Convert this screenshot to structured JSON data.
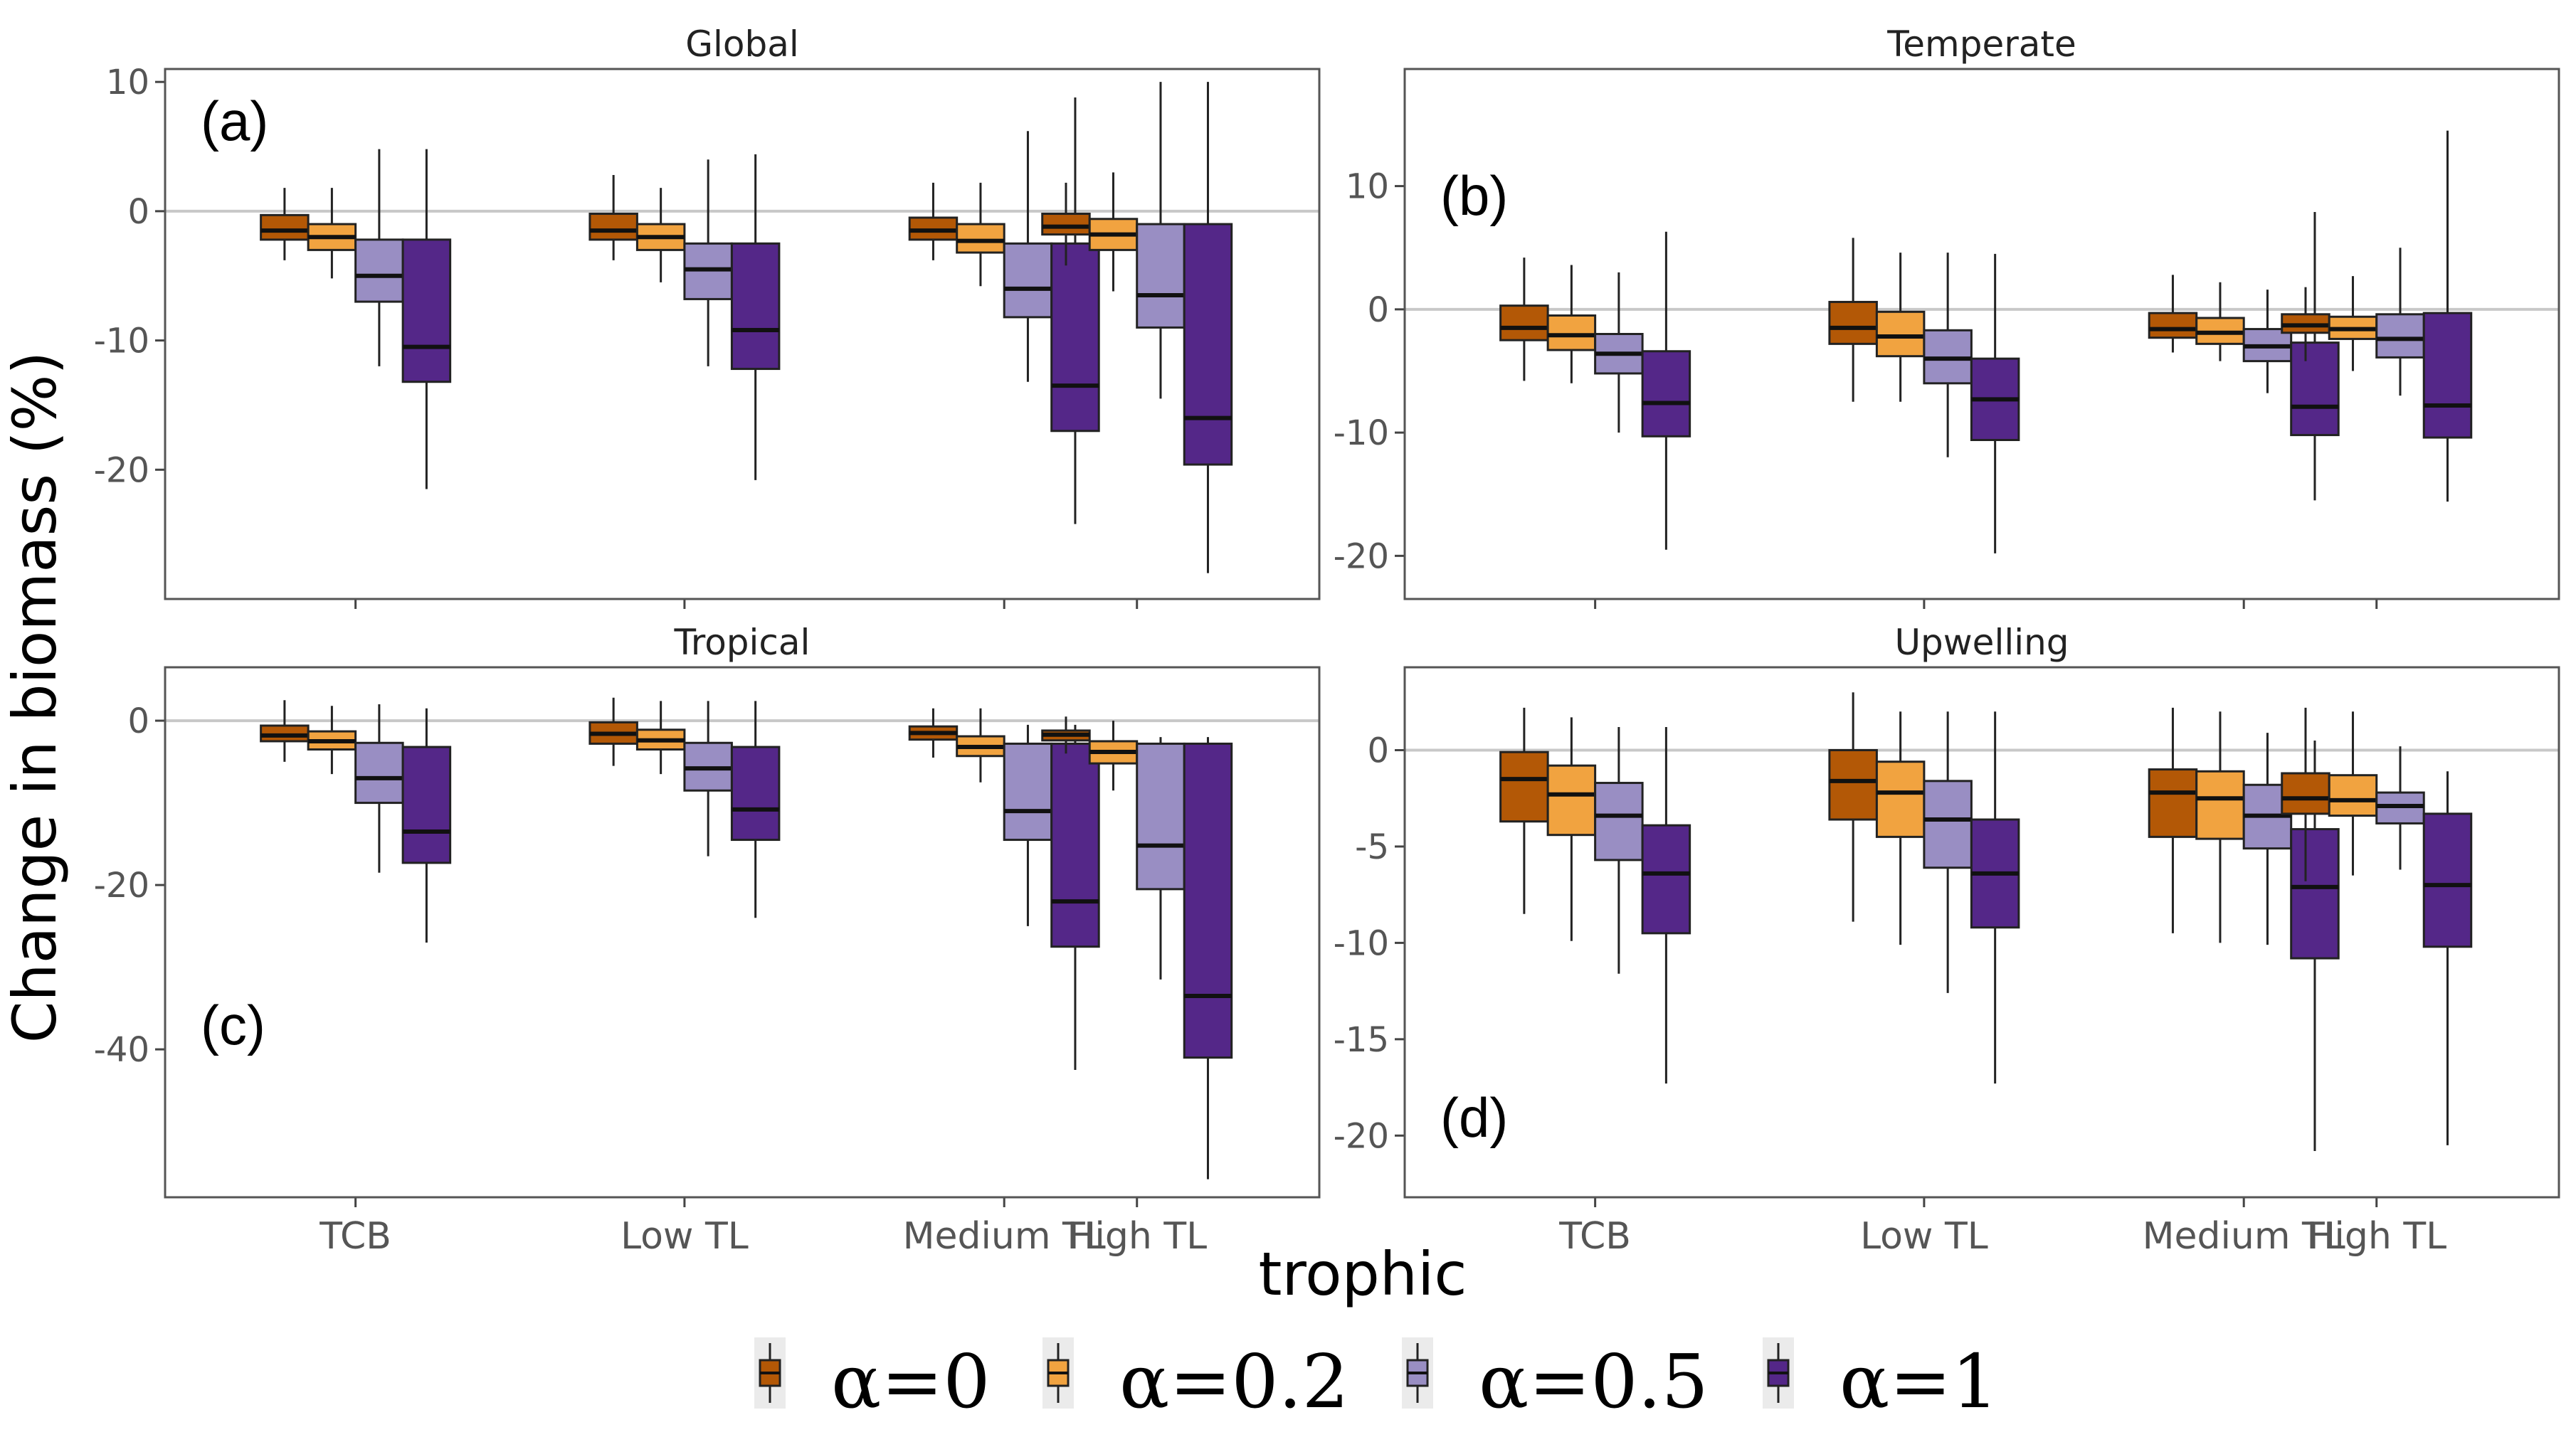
{
  "figure": {
    "ylabel": "Change in biomass (%)",
    "xlabel": "trophic",
    "legend": [
      {
        "label": "α=0",
        "color": "#B35806"
      },
      {
        "label": "α=0.2",
        "color": "#F1A340"
      },
      {
        "label": "α=0.5",
        "color": "#998EC3"
      },
      {
        "label": "α=1",
        "color": "#542788"
      }
    ]
  },
  "chart_data": [
    {
      "type": "box",
      "title": "Global",
      "panel_label": "(a)",
      "categories": [
        "TCB",
        "Low TL",
        "Medium TL",
        "High TL"
      ],
      "ylim": [
        -30,
        11
      ],
      "yticks": [
        10,
        0,
        -10,
        -20
      ],
      "reference_line": 0,
      "series": [
        {
          "name": "α=0",
          "boxes": [
            {
              "lo": -3.8,
              "q1": -2.2,
              "med": -1.5,
              "q3": -0.3,
              "hi": 1.8
            },
            {
              "lo": -3.8,
              "q1": -2.2,
              "med": -1.5,
              "q3": -0.2,
              "hi": 2.8
            },
            {
              "lo": -3.8,
              "q1": -2.2,
              "med": -1.5,
              "q3": -0.5,
              "hi": 2.2
            },
            {
              "lo": -4.2,
              "q1": -1.8,
              "med": -1.2,
              "q3": -0.2,
              "hi": 2.2
            }
          ]
        },
        {
          "name": "α=0.2",
          "boxes": [
            {
              "lo": -5.2,
              "q1": -3.0,
              "med": -2.0,
              "q3": -1.0,
              "hi": 1.8
            },
            {
              "lo": -5.5,
              "q1": -3.0,
              "med": -2.0,
              "q3": -1.0,
              "hi": 1.8
            },
            {
              "lo": -5.8,
              "q1": -3.2,
              "med": -2.3,
              "q3": -1.0,
              "hi": 2.2
            },
            {
              "lo": -6.2,
              "q1": -3.0,
              "med": -1.8,
              "q3": -0.6,
              "hi": 3.0
            }
          ]
        },
        {
          "name": "α=0.5",
          "boxes": [
            {
              "lo": -12.0,
              "q1": -7.0,
              "med": -5.0,
              "q3": -2.2,
              "hi": 4.8
            },
            {
              "lo": -12.0,
              "q1": -6.8,
              "med": -4.5,
              "q3": -2.5,
              "hi": 4.0
            },
            {
              "lo": -13.2,
              "q1": -8.2,
              "med": -6.0,
              "q3": -2.5,
              "hi": 6.2
            },
            {
              "lo": -14.5,
              "q1": -9.0,
              "med": -6.5,
              "q3": -1.0,
              "hi": 10.0
            }
          ]
        },
        {
          "name": "α=1",
          "boxes": [
            {
              "lo": -21.5,
              "q1": -13.2,
              "med": -10.5,
              "q3": -2.2,
              "hi": 4.8
            },
            {
              "lo": -20.8,
              "q1": -12.2,
              "med": -9.2,
              "q3": -2.5,
              "hi": 4.4
            },
            {
              "lo": -24.2,
              "q1": -17.0,
              "med": -13.5,
              "q3": -2.5,
              "hi": 8.8
            },
            {
              "lo": -28.0,
              "q1": -19.6,
              "med": -16.0,
              "q3": -1.0,
              "hi": 10.0
            }
          ]
        }
      ]
    },
    {
      "type": "box",
      "title": "Temperate",
      "panel_label": "(b)",
      "categories": [
        "TCB",
        "Low TL",
        "Medium TL",
        "High TL"
      ],
      "ylim": [
        -23.5,
        19.5
      ],
      "yticks": [
        10,
        0,
        -10,
        -20
      ],
      "reference_line": 0,
      "series": [
        {
          "name": "α=0",
          "boxes": [
            {
              "lo": -5.8,
              "q1": -2.5,
              "med": -1.5,
              "q3": 0.3,
              "hi": 4.2
            },
            {
              "lo": -7.5,
              "q1": -2.8,
              "med": -1.5,
              "q3": 0.6,
              "hi": 5.8
            },
            {
              "lo": -3.5,
              "q1": -2.3,
              "med": -1.6,
              "q3": -0.3,
              "hi": 2.8
            },
            {
              "lo": -4.2,
              "q1": -1.9,
              "med": -1.3,
              "q3": -0.4,
              "hi": 1.8
            }
          ]
        },
        {
          "name": "α=0.2",
          "boxes": [
            {
              "lo": -6.0,
              "q1": -3.3,
              "med": -2.1,
              "q3": -0.5,
              "hi": 3.6
            },
            {
              "lo": -7.5,
              "q1": -3.8,
              "med": -2.2,
              "q3": -0.2,
              "hi": 4.6
            },
            {
              "lo": -4.2,
              "q1": -2.8,
              "med": -1.9,
              "q3": -0.7,
              "hi": 2.2
            },
            {
              "lo": -5.0,
              "q1": -2.4,
              "med": -1.6,
              "q3": -0.6,
              "hi": 2.7
            }
          ]
        },
        {
          "name": "α=0.5",
          "boxes": [
            {
              "lo": -10.0,
              "q1": -5.2,
              "med": -3.6,
              "q3": -2.0,
              "hi": 3.0
            },
            {
              "lo": -12.0,
              "q1": -6.0,
              "med": -4.0,
              "q3": -1.7,
              "hi": 4.6
            },
            {
              "lo": -6.8,
              "q1": -4.2,
              "med": -3.0,
              "q3": -1.6,
              "hi": 1.6
            },
            {
              "lo": -7.0,
              "q1": -3.9,
              "med": -2.4,
              "q3": -0.4,
              "hi": 5.0
            }
          ]
        },
        {
          "name": "α=1",
          "boxes": [
            {
              "lo": -19.5,
              "q1": -10.3,
              "med": -7.6,
              "q3": -3.4,
              "hi": 6.3
            },
            {
              "lo": -19.8,
              "q1": -10.6,
              "med": -7.3,
              "q3": -4.0,
              "hi": 4.5
            },
            {
              "lo": -15.5,
              "q1": -10.2,
              "med": -7.9,
              "q3": -2.7,
              "hi": 7.9
            },
            {
              "lo": -15.6,
              "q1": -10.4,
              "med": -7.8,
              "q3": -0.3,
              "hi": 14.5
            }
          ]
        }
      ]
    },
    {
      "type": "box",
      "title": "Tropical",
      "panel_label": "(c)",
      "categories": [
        "TCB",
        "Low TL",
        "Medium TL",
        "High TL"
      ],
      "ylim": [
        -58,
        6.5
      ],
      "yticks": [
        0,
        -20,
        -40
      ],
      "reference_line": 0,
      "series": [
        {
          "name": "α=0",
          "boxes": [
            {
              "lo": -5.0,
              "q1": -2.5,
              "med": -1.8,
              "q3": -0.6,
              "hi": 2.5
            },
            {
              "lo": -5.5,
              "q1": -2.8,
              "med": -1.6,
              "q3": -0.2,
              "hi": 2.8
            },
            {
              "lo": -4.5,
              "q1": -2.3,
              "med": -1.5,
              "q3": -0.7,
              "hi": 1.5
            },
            {
              "lo": -4.0,
              "q1": -2.4,
              "med": -1.7,
              "q3": -1.2,
              "hi": 0.5
            }
          ]
        },
        {
          "name": "α=0.2",
          "boxes": [
            {
              "lo": -6.5,
              "q1": -3.5,
              "med": -2.5,
              "q3": -1.3,
              "hi": 1.8
            },
            {
              "lo": -6.5,
              "q1": -3.5,
              "med": -2.4,
              "q3": -1.1,
              "hi": 2.4
            },
            {
              "lo": -7.5,
              "q1": -4.3,
              "med": -3.2,
              "q3": -1.9,
              "hi": 1.5
            },
            {
              "lo": -8.5,
              "q1": -5.2,
              "med": -3.8,
              "q3": -2.5,
              "hi": 0.0
            }
          ]
        },
        {
          "name": "α=0.5",
          "boxes": [
            {
              "lo": -18.5,
              "q1": -10.0,
              "med": -7.0,
              "q3": -2.7,
              "hi": 2.0
            },
            {
              "lo": -16.5,
              "q1": -8.5,
              "med": -5.8,
              "q3": -2.7,
              "hi": 2.4
            },
            {
              "lo": -25.0,
              "q1": -14.5,
              "med": -11.0,
              "q3": -2.8,
              "hi": -0.5
            },
            {
              "lo": -31.5,
              "q1": -20.5,
              "med": -15.2,
              "q3": -2.8,
              "hi": -2.0
            }
          ]
        },
        {
          "name": "α=1",
          "boxes": [
            {
              "lo": -27.0,
              "q1": -17.3,
              "med": -13.5,
              "q3": -3.2,
              "hi": 1.5
            },
            {
              "lo": -24.0,
              "q1": -14.5,
              "med": -10.8,
              "q3": -3.2,
              "hi": 2.4
            },
            {
              "lo": -42.5,
              "q1": -27.5,
              "med": -22.0,
              "q3": -2.8,
              "hi": -0.5
            },
            {
              "lo": -55.8,
              "q1": -41.0,
              "med": -33.5,
              "q3": -2.8,
              "hi": -2.0
            }
          ]
        }
      ]
    },
    {
      "type": "box",
      "title": "Upwelling",
      "panel_label": "(d)",
      "categories": [
        "TCB",
        "Low TL",
        "Medium TL",
        "High TL"
      ],
      "ylim": [
        -23.2,
        4.3
      ],
      "yticks": [
        0,
        -5,
        -10,
        -15,
        -20
      ],
      "reference_line": 0,
      "series": [
        {
          "name": "α=0",
          "boxes": [
            {
              "lo": -8.5,
              "q1": -3.7,
              "med": -1.5,
              "q3": -0.1,
              "hi": 2.2
            },
            {
              "lo": -8.9,
              "q1": -3.6,
              "med": -1.6,
              "q3": 0.0,
              "hi": 3.0
            },
            {
              "lo": -9.5,
              "q1": -4.5,
              "med": -2.2,
              "q3": -1.0,
              "hi": 2.2
            },
            {
              "lo": -6.8,
              "q1": -3.3,
              "med": -2.5,
              "q3": -1.2,
              "hi": 2.2
            }
          ]
        },
        {
          "name": "α=0.2",
          "boxes": [
            {
              "lo": -9.9,
              "q1": -4.4,
              "med": -2.3,
              "q3": -0.8,
              "hi": 1.7
            },
            {
              "lo": -10.1,
              "q1": -4.5,
              "med": -2.2,
              "q3": -0.6,
              "hi": 2.0
            },
            {
              "lo": -10.0,
              "q1": -4.6,
              "med": -2.5,
              "q3": -1.1,
              "hi": 2.0
            },
            {
              "lo": -6.5,
              "q1": -3.4,
              "med": -2.6,
              "q3": -1.3,
              "hi": 2.0
            }
          ]
        },
        {
          "name": "α=0.5",
          "boxes": [
            {
              "lo": -11.6,
              "q1": -5.7,
              "med": -3.4,
              "q3": -1.7,
              "hi": 1.2
            },
            {
              "lo": -12.6,
              "q1": -6.1,
              "med": -3.6,
              "q3": -1.6,
              "hi": 2.0
            },
            {
              "lo": -10.1,
              "q1": -5.1,
              "med": -3.4,
              "q3": -1.8,
              "hi": 0.9
            },
            {
              "lo": -6.2,
              "q1": -3.8,
              "med": -2.9,
              "q3": -2.2,
              "hi": 0.2
            }
          ]
        },
        {
          "name": "α=1",
          "boxes": [
            {
              "lo": -17.3,
              "q1": -9.5,
              "med": -6.4,
              "q3": -3.9,
              "hi": 1.2
            },
            {
              "lo": -17.3,
              "q1": -9.2,
              "med": -6.4,
              "q3": -3.6,
              "hi": 2.0
            },
            {
              "lo": -20.8,
              "q1": -10.8,
              "med": -7.1,
              "q3": -4.1,
              "hi": 0.5
            },
            {
              "lo": -20.5,
              "q1": -10.2,
              "med": -7.0,
              "q3": -3.3,
              "hi": -1.1
            }
          ]
        }
      ]
    }
  ]
}
